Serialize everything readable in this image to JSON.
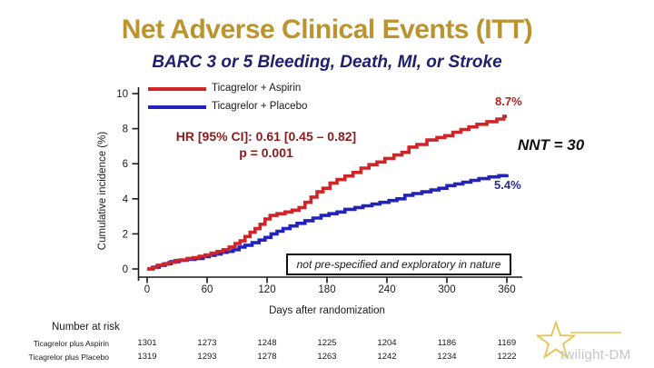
{
  "title": "Net Adverse Clinical Events (ITT)",
  "subtitle": "BARC 3 or 5 Bleeding, Death, MI, or Stroke",
  "colors": {
    "title_gold": "#BC942F",
    "subtitle_navy": "#20206E",
    "aspirin_red": "#D02428",
    "placebo_blue": "#2222BE",
    "hr_text_maroon": "#8B1C1C",
    "endpoint_red": "#B22222",
    "endpoint_blue": "#2626A8",
    "axis_black": "#1a1a1a",
    "watermark_gold": "#E8C44C",
    "watermark_gray": "#c6c6c6"
  },
  "legend": {
    "items": [
      {
        "label": "Ticagrelor + Aspirin",
        "color": "#D02428"
      },
      {
        "label": "Ticagrelor + Placebo",
        "color": "#2222BE"
      }
    ]
  },
  "annotations": {
    "hr_line1": "HR [95% CI]: 0.61 [0.45 – 0.82]",
    "hr_line2": "p = 0.001",
    "endpoint_aspirin": "8.7%",
    "endpoint_placebo": "5.4%",
    "nnt": "NNT = 30",
    "note": "not pre-specified and exploratory in nature"
  },
  "chart_data": {
    "type": "line",
    "subtype": "kaplan-meier-step",
    "title": "Net Adverse Clinical Events (ITT)",
    "subtitle": "BARC 3 or 5 Bleeding, Death, MI, or Stroke",
    "xlabel": "Days after randomization",
    "ylabel": "Cumulative incidence (%)",
    "xlim": [
      0,
      360
    ],
    "ylim": [
      0,
      10
    ],
    "x_ticks": [
      0,
      60,
      120,
      180,
      240,
      300,
      360
    ],
    "y_ticks": [
      0,
      2,
      4,
      6,
      8,
      10
    ],
    "grid": false,
    "legend_position": "top-left-inside",
    "hr_text": "HR [95% CI]: 0.61 [0.45 – 0.82]",
    "p_text": "p = 0.001",
    "nnt_text": "NNT = 30",
    "series": [
      {
        "name": "Ticagrelor + Aspirin",
        "color": "#D02428",
        "final_label": "8.7%",
        "points": [
          [
            0,
            0
          ],
          [
            5,
            0.08
          ],
          [
            10,
            0.2
          ],
          [
            16,
            0.28
          ],
          [
            22,
            0.38
          ],
          [
            28,
            0.48
          ],
          [
            34,
            0.52
          ],
          [
            40,
            0.6
          ],
          [
            46,
            0.65
          ],
          [
            52,
            0.72
          ],
          [
            58,
            0.8
          ],
          [
            64,
            0.9
          ],
          [
            70,
            1.0
          ],
          [
            76,
            1.1
          ],
          [
            82,
            1.25
          ],
          [
            88,
            1.45
          ],
          [
            93,
            1.6
          ],
          [
            98,
            1.85
          ],
          [
            103,
            2.1
          ],
          [
            108,
            2.3
          ],
          [
            113,
            2.55
          ],
          [
            118,
            2.85
          ],
          [
            123,
            3.05
          ],
          [
            130,
            3.15
          ],
          [
            138,
            3.25
          ],
          [
            145,
            3.35
          ],
          [
            152,
            3.5
          ],
          [
            158,
            3.8
          ],
          [
            164,
            4.1
          ],
          [
            170,
            4.4
          ],
          [
            176,
            4.6
          ],
          [
            183,
            4.9
          ],
          [
            190,
            5.1
          ],
          [
            198,
            5.3
          ],
          [
            206,
            5.5
          ],
          [
            214,
            5.75
          ],
          [
            222,
            5.95
          ],
          [
            230,
            6.1
          ],
          [
            238,
            6.3
          ],
          [
            247,
            6.5
          ],
          [
            255,
            6.65
          ],
          [
            262,
            6.95
          ],
          [
            270,
            7.1
          ],
          [
            280,
            7.35
          ],
          [
            290,
            7.5
          ],
          [
            298,
            7.6
          ],
          [
            306,
            7.8
          ],
          [
            314,
            7.95
          ],
          [
            322,
            8.1
          ],
          [
            330,
            8.25
          ],
          [
            340,
            8.4
          ],
          [
            350,
            8.55
          ],
          [
            357,
            8.7
          ],
          [
            360,
            8.7
          ]
        ]
      },
      {
        "name": "Ticagrelor + Placebo",
        "color": "#2222BE",
        "final_label": "5.4%",
        "points": [
          [
            0,
            0
          ],
          [
            6,
            0.1
          ],
          [
            12,
            0.2
          ],
          [
            18,
            0.3
          ],
          [
            24,
            0.42
          ],
          [
            32,
            0.5
          ],
          [
            40,
            0.55
          ],
          [
            48,
            0.6
          ],
          [
            56,
            0.7
          ],
          [
            62,
            0.78
          ],
          [
            68,
            0.85
          ],
          [
            74,
            0.95
          ],
          [
            80,
            1.0
          ],
          [
            86,
            1.1
          ],
          [
            92,
            1.25
          ],
          [
            98,
            1.35
          ],
          [
            105,
            1.5
          ],
          [
            112,
            1.65
          ],
          [
            118,
            1.8
          ],
          [
            124,
            2.0
          ],
          [
            130,
            2.15
          ],
          [
            136,
            2.3
          ],
          [
            143,
            2.45
          ],
          [
            150,
            2.6
          ],
          [
            158,
            2.75
          ],
          [
            166,
            2.9
          ],
          [
            174,
            3.05
          ],
          [
            182,
            3.15
          ],
          [
            190,
            3.25
          ],
          [
            198,
            3.4
          ],
          [
            208,
            3.5
          ],
          [
            216,
            3.6
          ],
          [
            225,
            3.7
          ],
          [
            233,
            3.8
          ],
          [
            242,
            3.9
          ],
          [
            250,
            4.0
          ],
          [
            258,
            4.2
          ],
          [
            266,
            4.3
          ],
          [
            275,
            4.4
          ],
          [
            284,
            4.5
          ],
          [
            292,
            4.6
          ],
          [
            300,
            4.75
          ],
          [
            308,
            4.85
          ],
          [
            316,
            4.95
          ],
          [
            324,
            5.05
          ],
          [
            332,
            5.15
          ],
          [
            342,
            5.25
          ],
          [
            352,
            5.32
          ],
          [
            360,
            5.4
          ]
        ]
      }
    ]
  },
  "risk_table": {
    "heading": "Number at risk",
    "rows": [
      {
        "label": "Ticagrelor plus Aspirin",
        "values": [
          "1301",
          "1273",
          "1248",
          "1225",
          "1204",
          "1186",
          "1169"
        ]
      },
      {
        "label": "Ticagrelor plus Placebo",
        "values": [
          "1319",
          "1293",
          "1278",
          "1263",
          "1242",
          "1234",
          "1222"
        ]
      }
    ]
  },
  "watermark": {
    "text": "twilight-DM"
  }
}
